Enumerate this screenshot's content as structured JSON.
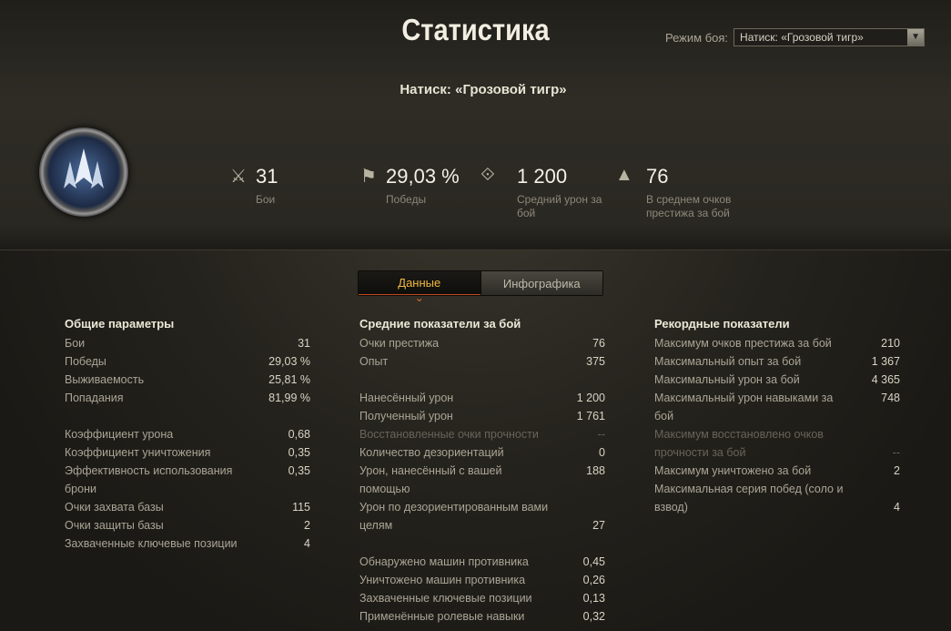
{
  "header": {
    "title": "Статистика",
    "mode_label": "Режим боя:",
    "mode_value": "Натиск: «Грозовой тигр»",
    "subtitle": "Натиск: «Грозовой тигр»"
  },
  "summary": [
    {
      "icon": "crossed-swords-icon",
      "value": "31",
      "label": "Бои"
    },
    {
      "icon": "flag-icon",
      "value": "29,03 %",
      "label": "Победы"
    },
    {
      "icon": "shell-damage-icon",
      "value": "1 200",
      "label": "Средний урон за бой"
    },
    {
      "icon": "prestige-icon",
      "value": "76",
      "label": "В среднем очков престижа за бой"
    }
  ],
  "tabs": [
    {
      "label": "Данные",
      "active": true
    },
    {
      "label": "Инфографика",
      "active": false
    }
  ],
  "columns": [
    {
      "title": "Общие параметры",
      "groups": [
        [
          {
            "label": "Бои",
            "value": "31"
          },
          {
            "label": "Победы",
            "value": "29,03 %"
          },
          {
            "label": "Выживаемость",
            "value": "25,81 %"
          },
          {
            "label": "Попадания",
            "value": "81,99 %"
          }
        ],
        [
          {
            "label": "Коэффициент урона",
            "value": "0,68"
          },
          {
            "label": "Коэффициент уничтожения",
            "value": "0,35"
          },
          {
            "label": "Эффективность использования брони",
            "value": "0,35"
          },
          {
            "label": "Очки захвата базы",
            "value": "115"
          },
          {
            "label": "Очки защиты базы",
            "value": "2"
          },
          {
            "label": "Захваченные ключевые позиции",
            "value": "4"
          }
        ]
      ]
    },
    {
      "title": "Средние показатели за бой",
      "groups": [
        [
          {
            "label": "Очки престижа",
            "value": "76"
          },
          {
            "label": "Опыт",
            "value": "375"
          }
        ],
        [
          {
            "label": "Нанесённый урон",
            "value": "1 200"
          },
          {
            "label": "Полученный урон",
            "value": "1 761"
          },
          {
            "label": "Восстановленные очки прочности",
            "value": "--",
            "dim": true
          },
          {
            "label": "Количество дезориентаций",
            "value": "0"
          },
          {
            "label": "Урон, нанесённый с вашей помощью",
            "value": "188"
          },
          {
            "label": "Урон по дезориентированным вами целям",
            "value": "27"
          }
        ],
        [
          {
            "label": "Обнаружено машин противника",
            "value": "0,45"
          },
          {
            "label": "Уничтожено машин противника",
            "value": "0,26"
          },
          {
            "label": "Захваченные ключевые позиции",
            "value": "0,13"
          },
          {
            "label": "Применённые ролевые навыки",
            "value": "0,32"
          }
        ]
      ]
    },
    {
      "title": "Рекордные показатели",
      "groups": [
        [
          {
            "label": "Максимум очков престижа за бой",
            "value": "210"
          },
          {
            "label": "Максимальный опыт за бой",
            "value": "1 367"
          },
          {
            "label": "Максимальный урон за бой",
            "value": "4 365"
          },
          {
            "label": "Максимальный урон навыками за бой",
            "value": "748"
          },
          {
            "label": "Максимум восстановлено очков прочности за бой",
            "value": "--",
            "dim": true
          },
          {
            "label": "Максимум уничтожено за бой",
            "value": "2"
          },
          {
            "label": "Максимальная серия побед (соло и взвод)",
            "value": "4"
          }
        ]
      ]
    }
  ],
  "colors": {
    "active_tab": "#f0b940",
    "accent_line": "#c2481a"
  }
}
